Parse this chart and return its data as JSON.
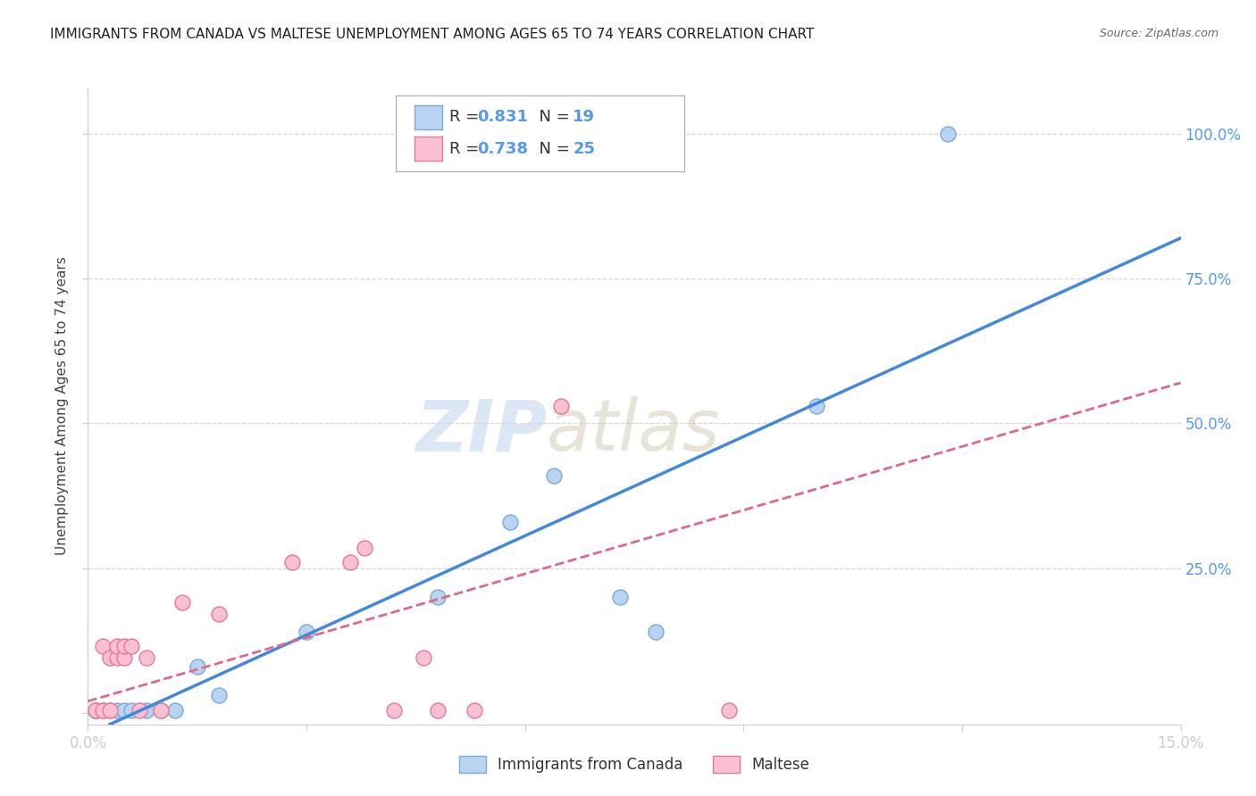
{
  "title": "IMMIGRANTS FROM CANADA VS MALTESE UNEMPLOYMENT AMONG AGES 65 TO 74 YEARS CORRELATION CHART",
  "source": "Source: ZipAtlas.com",
  "ylabel": "Unemployment Among Ages 65 to 74 years",
  "xlim": [
    0.0,
    0.15
  ],
  "ylim": [
    -0.02,
    1.08
  ],
  "x_ticks": [
    0.0,
    0.03,
    0.06,
    0.09,
    0.12,
    0.15
  ],
  "x_tick_labels": [
    "0.0%",
    "",
    "",
    "",
    "",
    "15.0%"
  ],
  "y_ticks": [
    0.0,
    0.25,
    0.5,
    0.75,
    1.0
  ],
  "y_tick_labels_right": [
    "",
    "25.0%",
    "50.0%",
    "75.0%",
    "100.0%"
  ],
  "legend1_r": "0.831",
  "legend1_n": "19",
  "legend2_r": "0.738",
  "legend2_n": "25",
  "legend_bottom_label1": "Immigrants from Canada",
  "legend_bottom_label2": "Maltese",
  "blue_scatter_x": [
    0.001,
    0.002,
    0.003,
    0.004,
    0.005,
    0.006,
    0.008,
    0.01,
    0.012,
    0.015,
    0.018,
    0.03,
    0.048,
    0.058,
    0.064,
    0.073,
    0.078,
    0.1,
    0.118
  ],
  "blue_scatter_y": [
    0.005,
    0.005,
    0.005,
    0.005,
    0.005,
    0.005,
    0.005,
    0.005,
    0.005,
    0.08,
    0.03,
    0.14,
    0.2,
    0.33,
    0.41,
    0.2,
    0.14,
    0.53,
    1.0
  ],
  "pink_scatter_x": [
    0.001,
    0.001,
    0.002,
    0.002,
    0.003,
    0.003,
    0.004,
    0.004,
    0.005,
    0.005,
    0.006,
    0.007,
    0.008,
    0.01,
    0.013,
    0.018,
    0.028,
    0.036,
    0.038,
    0.042,
    0.046,
    0.048,
    0.053,
    0.065,
    0.088
  ],
  "pink_scatter_y": [
    0.005,
    0.005,
    0.005,
    0.115,
    0.095,
    0.005,
    0.095,
    0.115,
    0.095,
    0.115,
    0.115,
    0.005,
    0.095,
    0.005,
    0.19,
    0.17,
    0.26,
    0.26,
    0.285,
    0.005,
    0.095,
    0.005,
    0.005,
    0.53,
    0.005
  ],
  "blue_line_x": [
    0.003,
    0.15
  ],
  "blue_line_y": [
    -0.02,
    0.82
  ],
  "pink_line_x": [
    0.0,
    0.15
  ],
  "pink_line_y": [
    0.02,
    0.57
  ],
  "blue_color": "#b8d4f0",
  "blue_edge_color": "#7aaadd",
  "pink_color": "#f8c0d0",
  "pink_edge_color": "#e87898",
  "blue_line_color": "#4488dd",
  "pink_line_color": "#e06888",
  "watermark_zip": "ZIP",
  "watermark_atlas": "atlas",
  "background_color": "#ffffff",
  "grid_color": "#d8d8d8",
  "tick_color": "#5599ee",
  "label_color": "#444444"
}
